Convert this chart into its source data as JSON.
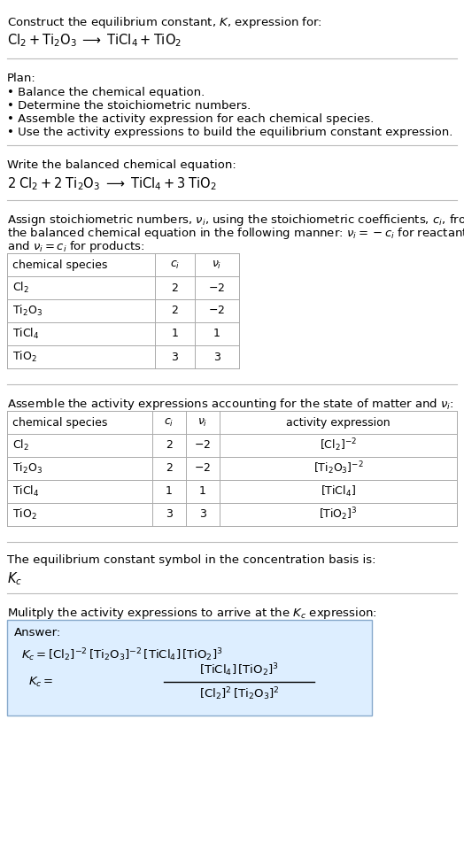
{
  "bg_color": "#ffffff",
  "separator_color": "#bbbbbb",
  "table_border_color": "#aaaaaa",
  "answer_box_color": "#ddeeff",
  "answer_box_border": "#88aacc",
  "font_size_body": 9.5,
  "font_size_chem": 10.5,
  "font_size_table": 9.0,
  "title_line1": "Construct the equilibrium constant, $K$, expression for:",
  "title_chem": "$\\mathrm{Cl_2 + Ti_2O_3 \\;\\longrightarrow\\; TiCl_4 + TiO_2}$",
  "plan_header": "Plan:",
  "plan_items": [
    "• Balance the chemical equation.",
    "• Determine the stoichiometric numbers.",
    "• Assemble the activity expression for each chemical species.",
    "• Use the activity expressions to build the equilibrium constant expression."
  ],
  "balanced_header": "Write the balanced chemical equation:",
  "balanced_chem": "$2\\;\\mathrm{Cl_2 + 2\\;Ti_2O_3 \\;\\longrightarrow\\; TiCl_4 + 3\\;TiO_2}$",
  "stoich_line1": "Assign stoichiometric numbers, $\\nu_i$, using the stoichiometric coefficients, $c_i$, from",
  "stoich_line2": "the balanced chemical equation in the following manner: $\\nu_i = -c_i$ for reactants",
  "stoich_line3": "and $\\nu_i = c_i$ for products:",
  "t1_col_headers": [
    "chemical species",
    "$c_i$",
    "$\\nu_i$"
  ],
  "t1_rows": [
    [
      "$\\mathrm{Cl_2}$",
      "2",
      "$-2$"
    ],
    [
      "$\\mathrm{Ti_2O_3}$",
      "2",
      "$-2$"
    ],
    [
      "$\\mathrm{TiCl_4}$",
      "1",
      "1"
    ],
    [
      "$\\mathrm{TiO_2}$",
      "3",
      "3"
    ]
  ],
  "activity_line": "Assemble the activity expressions accounting for the state of matter and $\\nu_i$:",
  "t2_col_headers": [
    "chemical species",
    "$c_i$",
    "$\\nu_i$",
    "activity expression"
  ],
  "t2_rows": [
    [
      "$\\mathrm{Cl_2}$",
      "2",
      "$-2$",
      "$[\\mathrm{Cl_2}]^{-2}$"
    ],
    [
      "$\\mathrm{Ti_2O_3}$",
      "2",
      "$-2$",
      "$[\\mathrm{Ti_2O_3}]^{-2}$"
    ],
    [
      "$\\mathrm{TiCl_4}$",
      "1",
      "1",
      "$[\\mathrm{TiCl_4}]$"
    ],
    [
      "$\\mathrm{TiO_2}$",
      "3",
      "3",
      "$[\\mathrm{TiO_2}]^3$"
    ]
  ],
  "kc_basis_line": "The equilibrium constant symbol in the concentration basis is:",
  "kc_symbol": "$K_c$",
  "multiply_line": "Mulitply the activity expressions to arrive at the $K_c$ expression:",
  "answer_label": "Answer:",
  "ans_line1": "$K_c = [\\mathrm{Cl_2}]^{-2}\\,[\\mathrm{Ti_2O_3}]^{-2}\\,[\\mathrm{TiCl_4}]\\,[\\mathrm{TiO_2}]^3$",
  "ans_lhs": "$K_c =$",
  "ans_num": "$[\\mathrm{TiCl_4}]\\,[\\mathrm{TiO_2}]^3$",
  "ans_den": "$[\\mathrm{Cl_2}]^2\\,[\\mathrm{Ti_2O_3}]^2$"
}
